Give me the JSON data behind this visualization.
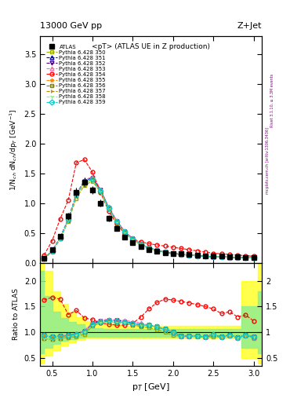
{
  "title_top": "13000 GeV pp",
  "title_right": "Z+Jet",
  "plot_title": "<pT> (ATLAS UE in Z production)",
  "xlabel": "p_{T} [GeV]",
  "ylabel_main": "1/N_{ch} dN_{ch}/dp_{T} [GeV⁻¹]",
  "ylabel_ratio": "Ratio to ATLAS",
  "right_label1": "mcplots.cern.ch [arXiv:1306.3436]",
  "right_label2": "Rivet 3.1.10, ≥ 3.3M events",
  "xlim": [
    0.35,
    3.1
  ],
  "ylim_main": [
    0.0,
    3.8
  ],
  "ylim_ratio": [
    0.35,
    2.35
  ],
  "xpts": [
    0.4,
    0.5,
    0.6,
    0.7,
    0.8,
    0.9,
    1.0,
    1.1,
    1.2,
    1.3,
    1.4,
    1.5,
    1.6,
    1.7,
    1.8,
    1.9,
    2.0,
    2.1,
    2.2,
    2.3,
    2.4,
    2.5,
    2.6,
    2.7,
    2.8,
    2.9,
    3.0
  ],
  "atlas_y": [
    0.08,
    0.22,
    0.45,
    0.78,
    1.18,
    1.35,
    1.22,
    1.0,
    0.75,
    0.57,
    0.43,
    0.34,
    0.27,
    0.22,
    0.19,
    0.17,
    0.16,
    0.15,
    0.14,
    0.13,
    0.12,
    0.11,
    0.11,
    0.1,
    0.1,
    0.09,
    0.09
  ],
  "atlas_err": [
    0.015,
    0.025,
    0.04,
    0.06,
    0.08,
    0.08,
    0.07,
    0.06,
    0.05,
    0.04,
    0.03,
    0.025,
    0.02,
    0.018,
    0.015,
    0.013,
    0.012,
    0.011,
    0.01,
    0.01,
    0.009,
    0.009,
    0.008,
    0.008,
    0.007,
    0.007,
    0.007
  ],
  "py350_y": [
    0.07,
    0.19,
    0.4,
    0.7,
    1.08,
    1.3,
    1.37,
    1.18,
    0.9,
    0.67,
    0.51,
    0.39,
    0.3,
    0.24,
    0.2,
    0.17,
    0.15,
    0.14,
    0.13,
    0.12,
    0.11,
    0.1,
    0.1,
    0.095,
    0.09,
    0.085,
    0.08
  ],
  "py351_y": [
    0.075,
    0.2,
    0.42,
    0.73,
    1.15,
    1.38,
    1.43,
    1.22,
    0.93,
    0.7,
    0.52,
    0.4,
    0.31,
    0.25,
    0.21,
    0.18,
    0.16,
    0.14,
    0.13,
    0.12,
    0.11,
    0.105,
    0.1,
    0.095,
    0.09,
    0.085,
    0.082
  ],
  "py352_y": [
    0.075,
    0.2,
    0.42,
    0.73,
    1.14,
    1.37,
    1.42,
    1.22,
    0.92,
    0.7,
    0.52,
    0.4,
    0.31,
    0.25,
    0.21,
    0.18,
    0.16,
    0.14,
    0.13,
    0.12,
    0.11,
    0.105,
    0.1,
    0.095,
    0.09,
    0.085,
    0.082
  ],
  "py353_y": [
    0.075,
    0.2,
    0.42,
    0.74,
    1.15,
    1.39,
    1.44,
    1.24,
    0.94,
    0.71,
    0.53,
    0.41,
    0.32,
    0.25,
    0.21,
    0.18,
    0.16,
    0.14,
    0.13,
    0.12,
    0.11,
    0.105,
    0.1,
    0.095,
    0.09,
    0.085,
    0.082
  ],
  "py354_y": [
    0.13,
    0.37,
    0.74,
    1.05,
    1.68,
    1.73,
    1.52,
    1.18,
    0.87,
    0.65,
    0.49,
    0.4,
    0.35,
    0.32,
    0.3,
    0.28,
    0.26,
    0.24,
    0.22,
    0.2,
    0.18,
    0.16,
    0.15,
    0.14,
    0.13,
    0.12,
    0.11
  ],
  "py355_y": [
    0.075,
    0.2,
    0.41,
    0.72,
    1.13,
    1.36,
    1.4,
    1.2,
    0.91,
    0.68,
    0.51,
    0.39,
    0.31,
    0.25,
    0.21,
    0.18,
    0.16,
    0.14,
    0.13,
    0.12,
    0.11,
    0.105,
    0.1,
    0.095,
    0.09,
    0.085,
    0.082
  ],
  "py356_y": [
    0.07,
    0.19,
    0.4,
    0.71,
    1.12,
    1.35,
    1.39,
    1.2,
    0.91,
    0.68,
    0.51,
    0.39,
    0.31,
    0.25,
    0.21,
    0.18,
    0.16,
    0.14,
    0.13,
    0.12,
    0.11,
    0.105,
    0.1,
    0.095,
    0.09,
    0.085,
    0.082
  ],
  "py357_y": [
    0.07,
    0.19,
    0.4,
    0.71,
    1.12,
    1.35,
    1.38,
    1.19,
    0.9,
    0.68,
    0.51,
    0.39,
    0.31,
    0.25,
    0.21,
    0.18,
    0.16,
    0.14,
    0.13,
    0.12,
    0.11,
    0.105,
    0.1,
    0.095,
    0.09,
    0.085,
    0.082
  ],
  "py358_y": [
    0.07,
    0.19,
    0.4,
    0.71,
    1.12,
    1.35,
    1.38,
    1.19,
    0.9,
    0.68,
    0.51,
    0.39,
    0.31,
    0.25,
    0.21,
    0.18,
    0.16,
    0.14,
    0.13,
    0.12,
    0.11,
    0.105,
    0.1,
    0.095,
    0.09,
    0.085,
    0.082
  ],
  "py359_y": [
    0.075,
    0.2,
    0.42,
    0.73,
    1.14,
    1.37,
    1.41,
    1.21,
    0.92,
    0.69,
    0.52,
    0.4,
    0.31,
    0.25,
    0.21,
    0.18,
    0.16,
    0.14,
    0.13,
    0.12,
    0.11,
    0.105,
    0.1,
    0.095,
    0.09,
    0.085,
    0.082
  ],
  "py_colors": [
    "#9aaa00",
    "#0000cd",
    "#4b0082",
    "#ff69b4",
    "#ff0000",
    "#ff8c00",
    "#808000",
    "#b8860b",
    "#90ee90",
    "#00ced1"
  ],
  "py_markers": [
    "s",
    "^",
    "v",
    "^",
    "o",
    "*",
    "s",
    "4",
    "1",
    "D"
  ],
  "py_numbers": [
    "350",
    "351",
    "352",
    "353",
    "354",
    "355",
    "356",
    "357",
    "358",
    "359"
  ],
  "band_x": [
    0.35,
    0.45,
    0.55,
    0.65,
    0.75,
    0.85,
    0.95,
    1.05,
    1.2,
    1.5,
    1.8,
    2.1,
    2.4,
    2.7,
    3.0,
    3.1
  ],
  "band_yellow_lo": [
    0.4,
    0.55,
    0.65,
    0.75,
    0.8,
    0.85,
    0.88,
    0.88,
    0.88,
    0.88,
    0.88,
    0.88,
    0.88,
    0.88,
    0.5,
    0.4
  ],
  "band_yellow_hi": [
    2.8,
    2.2,
    1.8,
    1.55,
    1.4,
    1.3,
    1.22,
    1.18,
    1.15,
    1.13,
    1.12,
    1.12,
    1.12,
    1.12,
    2.0,
    2.5
  ],
  "band_green_lo": [
    0.6,
    0.7,
    0.78,
    0.84,
    0.87,
    0.9,
    0.92,
    0.92,
    0.92,
    0.92,
    0.92,
    0.92,
    0.92,
    0.92,
    0.7,
    0.6
  ],
  "band_green_hi": [
    2.2,
    1.7,
    1.4,
    1.28,
    1.2,
    1.15,
    1.1,
    1.08,
    1.07,
    1.06,
    1.06,
    1.06,
    1.06,
    1.06,
    1.5,
    1.8
  ]
}
